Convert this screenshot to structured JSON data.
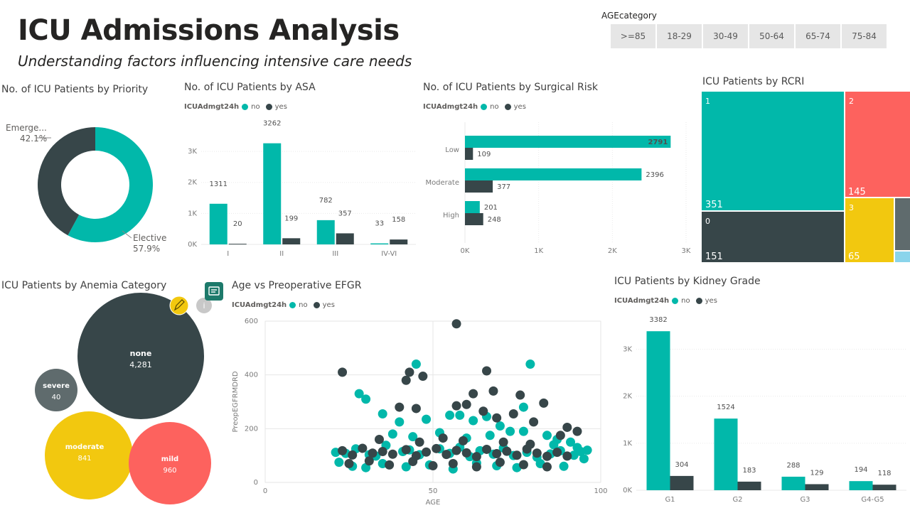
{
  "header": {
    "title": "ICU Admissions Analysis",
    "subtitle": "Understanding factors influencing intensive care needs"
  },
  "slicer": {
    "label": "AGEcategory",
    "options": [
      ">=85",
      "18-29",
      "30-49",
      "50-64",
      "65-74",
      "75-84"
    ]
  },
  "colors": {
    "no": "#01b8aa",
    "yes": "#374649",
    "red": "#fd625e",
    "yellow": "#f2c80f",
    "gray": "#5f6b6d",
    "lightblue": "#8ad4eb"
  },
  "legend": {
    "title": "ICUAdmgt24h",
    "no": "no",
    "yes": "yes"
  },
  "chart_data": [
    {
      "id": "priority",
      "type": "pie",
      "title": "No. of ICU Patients by Priority",
      "slices": [
        {
          "label": "Elective",
          "percent_label": "57.9%",
          "value": 57.9,
          "color": "#01b8aa"
        },
        {
          "label": "Emerge...",
          "percent_label": "42.1%",
          "value": 42.1,
          "color": "#374649"
        }
      ]
    },
    {
      "id": "asa",
      "type": "bar",
      "title": "No. of ICU Patients by ASA",
      "categories": [
        "I",
        "II",
        "III",
        "IV-VI"
      ],
      "series": [
        {
          "name": "no",
          "values": [
            1311,
            3262,
            782,
            33
          ]
        },
        {
          "name": "yes",
          "values": [
            20,
            199,
            357,
            158
          ]
        }
      ],
      "ylim": [
        0,
        3300
      ],
      "yticks": [
        "0K",
        "1K",
        "2K",
        "3K"
      ],
      "ytick_values": [
        0,
        1000,
        2000,
        3000
      ]
    },
    {
      "id": "surgical_risk",
      "type": "bar",
      "orientation": "horizontal",
      "title": "No. of ICU Patients by Surgical Risk",
      "categories": [
        "Low",
        "Moderate",
        "High"
      ],
      "series": [
        {
          "name": "no",
          "values": [
            2791,
            2396,
            201
          ]
        },
        {
          "name": "yes",
          "values": [
            109,
            377,
            248
          ]
        }
      ],
      "xlim": [
        0,
        3000
      ],
      "xticks": [
        "0K",
        "1K",
        "2K",
        "3K"
      ],
      "xtick_values": [
        0,
        1000,
        2000,
        3000
      ]
    },
    {
      "id": "rcri",
      "type": "treemap",
      "title": "ICU Patients by RCRI",
      "items": [
        {
          "label": "1",
          "value": 351,
          "value_label": "351",
          "color": "#01b8aa"
        },
        {
          "label": "2",
          "value": 145,
          "value_label": "145",
          "color": "#fd625e"
        },
        {
          "label": "0",
          "value": 151,
          "value_label": "151",
          "color": "#374649"
        },
        {
          "label": "3",
          "value": 65,
          "value_label": "65",
          "color": "#f2c80f"
        },
        {
          "label": "",
          "value": 20,
          "value_label": "",
          "color": "#5f6b6d"
        },
        {
          "label": "",
          "value": 5,
          "value_label": "",
          "color": "#8ad4eb"
        }
      ]
    },
    {
      "id": "anemia",
      "type": "bubble",
      "title": "ICU Patients by Anemia Category",
      "items": [
        {
          "label": "none",
          "value": 4281,
          "value_label": "4,281",
          "color": "#374649"
        },
        {
          "label": "severe",
          "value": 40,
          "value_label": "40",
          "color": "#5f6b6d"
        },
        {
          "label": "moderate",
          "value": 841,
          "value_label": "841",
          "color": "#f2c80f"
        },
        {
          "label": "mild",
          "value": 960,
          "value_label": "960",
          "color": "#fd625e"
        }
      ]
    },
    {
      "id": "age_egfr",
      "type": "scatter",
      "title": "Age vs Preoperative EFGR",
      "xlabel": "AGE",
      "ylabel": "PreopEGFRMDRD",
      "xlim": [
        0,
        100
      ],
      "ylim": [
        0,
        600
      ],
      "xticks": [
        0,
        50,
        100
      ],
      "yticks": [
        0,
        200,
        400,
        600
      ],
      "series": [
        {
          "name": "no",
          "points": [
            [
              21,
              112
            ],
            [
              24,
              108
            ],
            [
              27,
              125
            ],
            [
              31,
              103
            ],
            [
              33,
              98
            ],
            [
              36,
              138
            ],
            [
              41,
              115
            ],
            [
              43,
              121
            ],
            [
              46,
              103
            ],
            [
              52,
              125
            ],
            [
              55,
              108
            ],
            [
              58,
              131
            ],
            [
              61,
              96
            ],
            [
              64,
              118
            ],
            [
              68,
              105
            ],
            [
              71,
              128
            ],
            [
              74,
              100
            ],
            [
              78,
              112
            ],
            [
              81,
              94
            ],
            [
              85,
              106
            ],
            [
              88,
              118
            ],
            [
              92,
              101
            ],
            [
              95,
              88
            ],
            [
              96,
              120
            ],
            [
              28,
              330
            ],
            [
              30,
              310
            ],
            [
              45,
              440
            ],
            [
              79,
              440
            ],
            [
              77,
              280
            ],
            [
              35,
              255
            ],
            [
              40,
              225
            ],
            [
              48,
              235
            ],
            [
              55,
              250
            ],
            [
              58,
              250
            ],
            [
              62,
              230
            ],
            [
              66,
              245
            ],
            [
              70,
              210
            ],
            [
              73,
              190
            ],
            [
              77,
              190
            ],
            [
              84,
              175
            ],
            [
              87,
              160
            ],
            [
              91,
              150
            ],
            [
              93,
              130
            ],
            [
              94,
              115
            ],
            [
              22,
              75
            ],
            [
              26,
              60
            ],
            [
              30,
              55
            ],
            [
              35,
              70
            ],
            [
              42,
              58
            ],
            [
              49,
              65
            ],
            [
              56,
              50
            ],
            [
              63,
              72
            ],
            [
              69,
              62
            ],
            [
              75,
              55
            ],
            [
              82,
              70
            ],
            [
              89,
              60
            ],
            [
              38,
              180
            ],
            [
              44,
              170
            ],
            [
              52,
              185
            ],
            [
              60,
              165
            ],
            [
              67,
              175
            ],
            [
              86,
              140
            ]
          ]
        },
        {
          "name": "yes",
          "points": [
            [
              23,
              118
            ],
            [
              26,
              102
            ],
            [
              29,
              127
            ],
            [
              32,
              109
            ],
            [
              35,
              115
            ],
            [
              38,
              105
            ],
            [
              42,
              122
            ],
            [
              45,
              99
            ],
            [
              48,
              113
            ],
            [
              51,
              126
            ],
            [
              54,
              104
            ],
            [
              57,
              119
            ],
            [
              60,
              110
            ],
            [
              63,
              96
            ],
            [
              66,
              123
            ],
            [
              69,
              107
            ],
            [
              72,
              116
            ],
            [
              75,
              101
            ],
            [
              78,
              124
            ],
            [
              81,
              109
            ],
            [
              84,
              97
            ],
            [
              87,
              112
            ],
            [
              90,
              98
            ],
            [
              23,
              410
            ],
            [
              43,
              410
            ],
            [
              47,
              395
            ],
            [
              57,
              590
            ],
            [
              66,
              415
            ],
            [
              42,
              380
            ],
            [
              68,
              340
            ],
            [
              62,
              330
            ],
            [
              76,
              325
            ],
            [
              83,
              295
            ],
            [
              40,
              280
            ],
            [
              45,
              275
            ],
            [
              57,
              285
            ],
            [
              60,
              290
            ],
            [
              65,
              265
            ],
            [
              69,
              240
            ],
            [
              74,
              255
            ],
            [
              80,
              225
            ],
            [
              90,
              205
            ],
            [
              93,
              190
            ],
            [
              88,
              175
            ],
            [
              25,
              70
            ],
            [
              31,
              80
            ],
            [
              37,
              65
            ],
            [
              44,
              78
            ],
            [
              50,
              62
            ],
            [
              56,
              70
            ],
            [
              63,
              58
            ],
            [
              70,
              75
            ],
            [
              77,
              66
            ],
            [
              84,
              58
            ],
            [
              34,
              160
            ],
            [
              46,
              150
            ],
            [
              53,
              165
            ],
            [
              59,
              155
            ],
            [
              71,
              150
            ],
            [
              79,
              142
            ]
          ]
        }
      ]
    },
    {
      "id": "kidney",
      "type": "bar",
      "title": "ICU Patients by Kidney Grade",
      "categories": [
        "G1",
        "G2",
        "G3",
        "G4-G5"
      ],
      "series": [
        {
          "name": "no",
          "values": [
            3382,
            1524,
            288,
            194
          ]
        },
        {
          "name": "yes",
          "values": [
            304,
            183,
            129,
            118
          ]
        }
      ],
      "ylim": [
        0,
        3400
      ],
      "yticks": [
        "0K",
        "1K",
        "2K",
        "3K"
      ],
      "ytick_values": [
        0,
        1000,
        2000,
        3000
      ]
    }
  ]
}
